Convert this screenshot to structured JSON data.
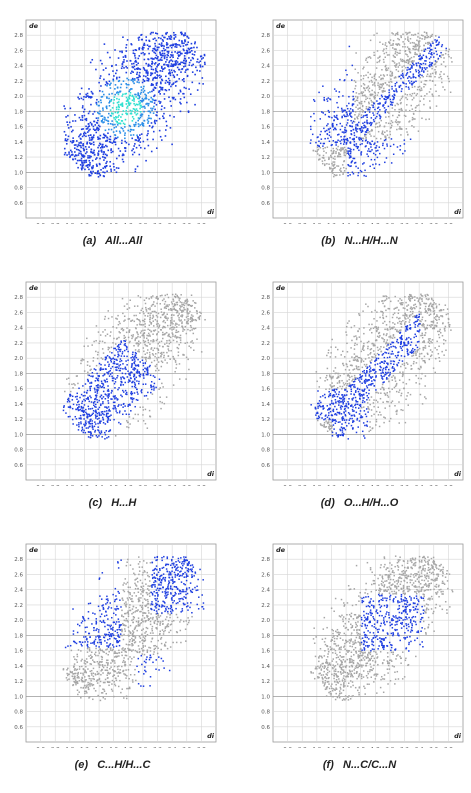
{
  "panels": [
    {
      "key": "a",
      "tag": "(a)",
      "label": "All...All",
      "highlight": "all"
    },
    {
      "key": "b",
      "tag": "(b)",
      "label": "N...H/H...N",
      "highlight": "nh"
    },
    {
      "key": "c",
      "tag": "(c)",
      "label": "H...H",
      "highlight": "hh"
    },
    {
      "key": "d",
      "tag": "(d)",
      "label": "O...H/H...O",
      "highlight": "oh"
    },
    {
      "key": "e",
      "tag": "(e)",
      "label": "C...H/H...C",
      "highlight": "ch"
    },
    {
      "key": "f",
      "tag": "(f)",
      "label": "N...C/C...N",
      "highlight": "nc"
    }
  ],
  "chart_data": {
    "type": "scatter",
    "description_axes": {
      "xlabel": "di",
      "ylabel": "de"
    },
    "x_ticks": [
      "0.6",
      "0.8",
      "1.0",
      "1.2",
      "1.4",
      "1.6",
      "1.8",
      "2.0",
      "2.2",
      "2.4",
      "2.6",
      "2.8"
    ],
    "y_ticks": [
      "0.6",
      "0.8",
      "1.0",
      "1.2",
      "1.4",
      "1.6",
      "1.8",
      "2.0",
      "2.2",
      "2.4",
      "2.6",
      "2.8"
    ],
    "xlim": [
      0.4,
      3.0
    ],
    "ylim": [
      0.4,
      3.0
    ],
    "grid": true,
    "colors": {
      "background_points": "#a6a6a6",
      "highlight_points": "#1f3fe0",
      "dense_points": "#2fe0d0",
      "grid": "#d6d6d6"
    }
  }
}
